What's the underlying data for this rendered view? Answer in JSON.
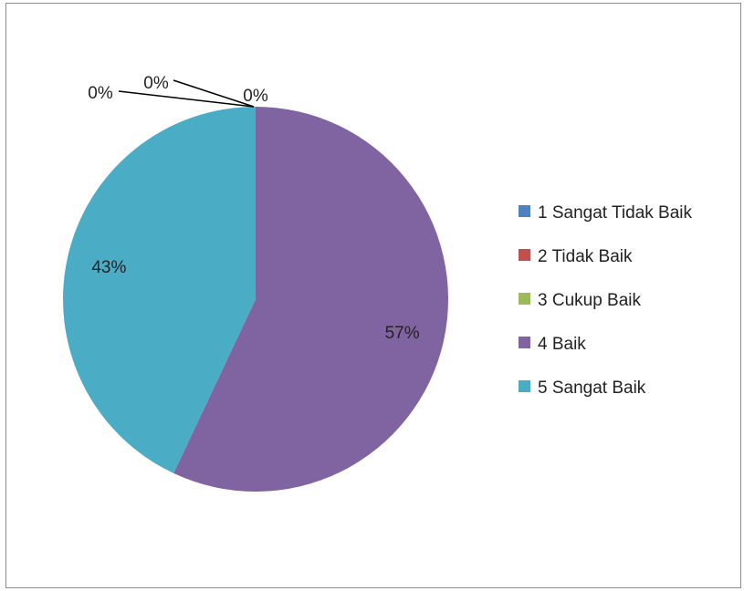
{
  "chart_data": {
    "type": "pie",
    "categories": [
      "1 Sangat Tidak Baik",
      "2 Tidak Baik",
      "3 Cukup Baik",
      "4 Baik",
      "5 Sangat Baik"
    ],
    "values": [
      0,
      0,
      0,
      57,
      43
    ],
    "data_labels": [
      "0%",
      "0%",
      "0%",
      "57%",
      "43%"
    ],
    "colors": [
      "#4f81bd",
      "#c0504d",
      "#9bbb59",
      "#8064a2",
      "#4bacc6"
    ],
    "legend_position": "right",
    "start_angle": "top, clockwise"
  }
}
